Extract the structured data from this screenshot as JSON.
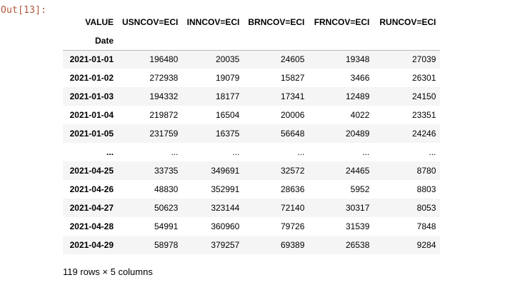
{
  "prompt": "Out[13]:",
  "table": {
    "columns_name": "VALUE",
    "columns": [
      "USNCOV=ECI",
      "INNCOV=ECI",
      "BRNCOV=ECI",
      "FRNCOV=ECI",
      "RUNCOV=ECI"
    ],
    "index_name": "Date",
    "rows": [
      {
        "index": "2021-01-01",
        "cells": [
          "196480",
          "20035",
          "24605",
          "19348",
          "27039"
        ]
      },
      {
        "index": "2021-01-02",
        "cells": [
          "272938",
          "19079",
          "15827",
          "3466",
          "26301"
        ]
      },
      {
        "index": "2021-01-03",
        "cells": [
          "194332",
          "18177",
          "17341",
          "12489",
          "24150"
        ]
      },
      {
        "index": "2021-01-04",
        "cells": [
          "219872",
          "16504",
          "20006",
          "4022",
          "23351"
        ]
      },
      {
        "index": "2021-01-05",
        "cells": [
          "231759",
          "16375",
          "56648",
          "20489",
          "24246"
        ]
      },
      {
        "index": "...",
        "cells": [
          "...",
          "...",
          "...",
          "...",
          "..."
        ]
      },
      {
        "index": "2021-04-25",
        "cells": [
          "33735",
          "349691",
          "32572",
          "24465",
          "8780"
        ]
      },
      {
        "index": "2021-04-26",
        "cells": [
          "48830",
          "352991",
          "28636",
          "5952",
          "8803"
        ]
      },
      {
        "index": "2021-04-27",
        "cells": [
          "50623",
          "323144",
          "72140",
          "30317",
          "8053"
        ]
      },
      {
        "index": "2021-04-28",
        "cells": [
          "54991",
          "360960",
          "79726",
          "31539",
          "7848"
        ]
      },
      {
        "index": "2021-04-29",
        "cells": [
          "58978",
          "379257",
          "69389",
          "26538",
          "9284"
        ]
      }
    ]
  },
  "shape_note": "119 rows × 5 columns"
}
